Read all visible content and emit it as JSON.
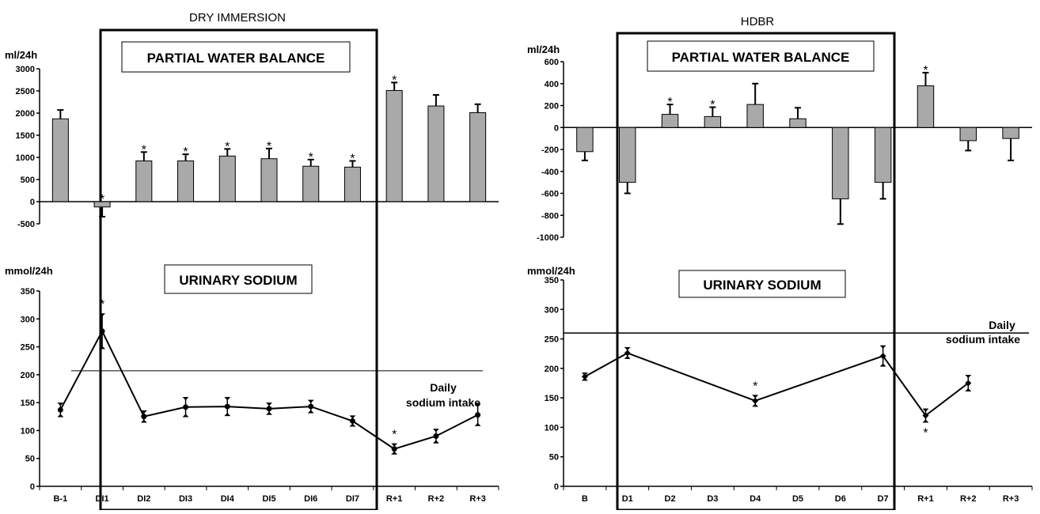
{
  "chart_data": [
    {
      "type": "bar",
      "panel_title": "DRY IMMERSION",
      "box_label": "PARTIAL WATER BALANCE",
      "unit_label": "ml/24h",
      "categories": [
        "B-1",
        "DI1",
        "DI2",
        "DI3",
        "DI4",
        "DI5",
        "DI6",
        "DI7",
        "R+1",
        "R+2",
        "R+3"
      ],
      "yticks": [
        "3000",
        "2500",
        "2000",
        "1500",
        "1000",
        "500",
        "0",
        "-500"
      ],
      "ylim": [
        -500,
        3000
      ],
      "values": [
        1870,
        -120,
        920,
        920,
        1030,
        970,
        800,
        780,
        2510,
        2160,
        2010
      ],
      "errors": [
        200,
        220,
        200,
        150,
        160,
        230,
        150,
        140,
        180,
        250,
        190
      ],
      "significant": [
        false,
        true,
        true,
        true,
        true,
        true,
        true,
        true,
        true,
        false,
        false
      ],
      "significance_mark": "*"
    },
    {
      "type": "line",
      "box_label": "URINARY SODIUM",
      "unit_label": "mmol/24h",
      "categories": [
        "B-1",
        "DI1",
        "DI2",
        "DI3",
        "DI4",
        "DI5",
        "DI6",
        "DI7",
        "R+1",
        "R+2",
        "R+3"
      ],
      "yticks": [
        "350",
        "300",
        "250",
        "200",
        "150",
        "100",
        "50",
        "0"
      ],
      "ylim": [
        0,
        350
      ],
      "values": [
        137,
        278,
        125,
        142,
        143,
        139,
        143,
        117,
        67,
        90,
        128
      ],
      "errors": [
        13,
        32,
        11,
        18,
        17,
        11,
        12,
        10,
        10,
        13,
        20
      ],
      "significant": [
        false,
        true,
        false,
        false,
        false,
        false,
        false,
        false,
        true,
        false,
        false
      ],
      "significance_mark": "*",
      "reference_line": {
        "value": 207,
        "label_line1": "Daily",
        "label_line2": "sodium intake"
      }
    },
    {
      "type": "bar",
      "panel_title": "HDBR",
      "box_label": "PARTIAL WATER BALANCE",
      "unit_label": "ml/24h",
      "categories": [
        "B",
        "D1",
        "D2",
        "D3",
        "D4",
        "D5",
        "D6",
        "D7",
        "R+1",
        "R+2",
        "R+3"
      ],
      "yticks": [
        "600",
        "400",
        "200",
        "0",
        "-200",
        "-400",
        "-600",
        "-800",
        "-1000"
      ],
      "ylim": [
        -1000,
        600
      ],
      "values": [
        -220,
        -500,
        120,
        100,
        210,
        80,
        -650,
        -500,
        380,
        -120,
        -100
      ],
      "errors": [
        80,
        100,
        90,
        85,
        190,
        100,
        230,
        150,
        120,
        90,
        200
      ],
      "significant": [
        false,
        false,
        true,
        true,
        false,
        false,
        false,
        false,
        true,
        false,
        false
      ],
      "significance_mark": "*"
    },
    {
      "type": "line",
      "box_label": "URINARY SODIUM",
      "unit_label": "mmol/24h",
      "categories": [
        "B",
        "D1",
        "D2",
        "D3",
        "D4",
        "D5",
        "D6",
        "D7",
        "R+1",
        "R+2",
        "R+3"
      ],
      "yticks": [
        "350",
        "300",
        "250",
        "200",
        "150",
        "100",
        "50",
        "0"
      ],
      "ylim": [
        0,
        350
      ],
      "points": [
        {
          "i": 0,
          "value": 186,
          "error": 7
        },
        {
          "i": 1,
          "value": 226,
          "error": 10
        },
        {
          "i": 4,
          "value": 145,
          "error": 10
        },
        {
          "i": 7,
          "value": 221,
          "error": 18
        },
        {
          "i": 8,
          "value": 120,
          "error": 12
        },
        {
          "i": 9,
          "value": 175,
          "error": 14
        }
      ],
      "star_points": [
        {
          "i": 4,
          "position": "above"
        },
        {
          "i": 8,
          "position": "below"
        }
      ],
      "significance_mark": "*",
      "reference_line": {
        "value": 260,
        "label_line1": "Daily",
        "label_line2": "sodium intake"
      }
    }
  ]
}
